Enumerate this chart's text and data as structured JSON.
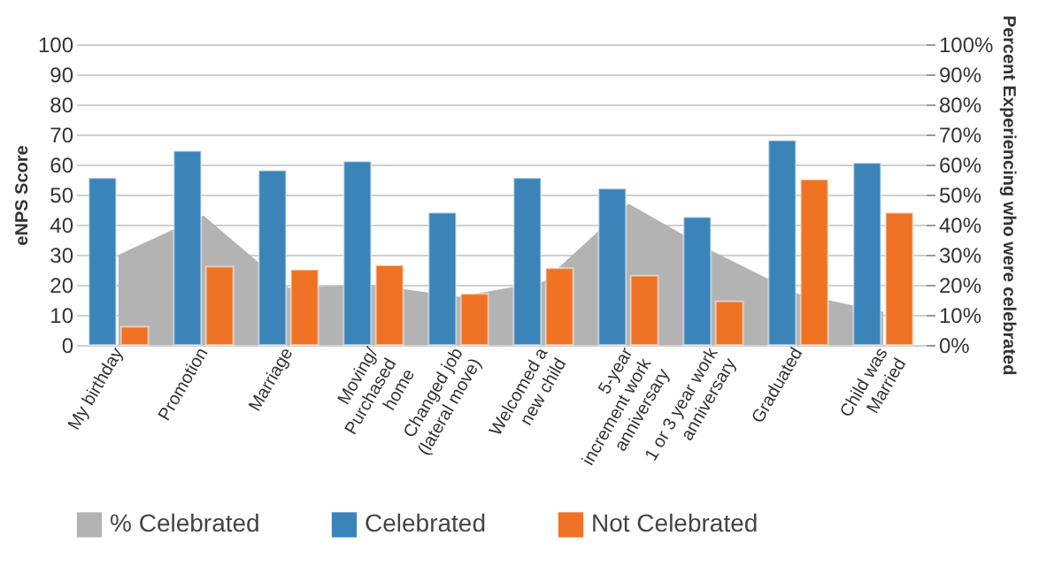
{
  "chart_data": {
    "type": "bar",
    "ylabel": "eNPS Score",
    "y2label": "Percent Experiencing who were celebrated",
    "categories": [
      "My birthday",
      "Promotion",
      "Marriage",
      "Moving/\nPurchased\nhome",
      "Changed job\n(lateral move)",
      "Welcomed a\nnew child",
      "5-year\nincrement work\nanniversary",
      "1 or 3 year work\nanniversary",
      "Graduated",
      "Child was\nMarried"
    ],
    "series": [
      {
        "name": "% Celebrated",
        "type": "area",
        "axis": "y2",
        "color": "#b3b3b3",
        "values": [
          30,
          43,
          19,
          20,
          16,
          21,
          47,
          31,
          17,
          11
        ]
      },
      {
        "name": "Celebrated",
        "color": "#3a84b9",
        "values": [
          55.5,
          64.5,
          58,
          61,
          44,
          55.5,
          52,
          42.5,
          68,
          60.5
        ]
      },
      {
        "name": "Not Celebrated",
        "color": "#f07224",
        "values": [
          6,
          26,
          25,
          26.5,
          17,
          25.5,
          23,
          14.5,
          55,
          44
        ]
      }
    ],
    "ylim": [
      0,
      100
    ],
    "yticks": [
      0,
      10,
      20,
      30,
      40,
      50,
      60,
      70,
      80,
      90,
      100
    ],
    "y2lim": [
      0,
      100
    ],
    "y2ticks": [
      {
        "value": 0,
        "label": "0%"
      },
      {
        "value": 10,
        "label": "10%"
      },
      {
        "value": 20,
        "label": "20%"
      },
      {
        "value": 30,
        "label": "30%"
      },
      {
        "value": 40,
        "label": "40%"
      },
      {
        "value": 50,
        "label": "50%"
      },
      {
        "value": 60,
        "label": "60%"
      },
      {
        "value": 70,
        "label": "70%"
      },
      {
        "value": 80,
        "label": "80%"
      },
      {
        "value": 90,
        "label": "90%"
      },
      {
        "value": 100,
        "label": "100%"
      }
    ],
    "grid": "y",
    "legend": "bottom"
  }
}
